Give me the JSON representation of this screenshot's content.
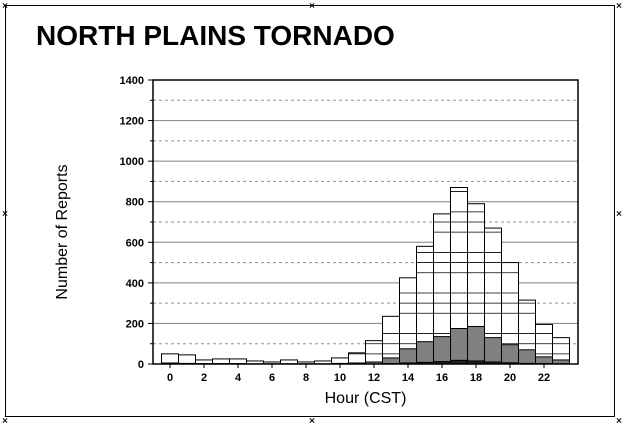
{
  "chart_data": {
    "type": "bar",
    "title": "NORTH PLAINS TORNADO",
    "xlabel": "Hour (CST)",
    "ylabel": "Number of Reports",
    "ylim": [
      0,
      1400
    ],
    "xlim": [
      -1,
      24
    ],
    "yticks": [
      "0",
      "200",
      "400",
      "600",
      "800",
      "1000",
      "1200",
      "1400"
    ],
    "xticks": [
      "0",
      "2",
      "4",
      "6",
      "8",
      "10",
      "12",
      "14",
      "16",
      "18",
      "20",
      "22"
    ],
    "hours": [
      0,
      1,
      2,
      3,
      4,
      5,
      6,
      7,
      8,
      9,
      10,
      11,
      12,
      13,
      14,
      15,
      16,
      17,
      18,
      19,
      20,
      21,
      22,
      23
    ],
    "grid": true,
    "series": [
      {
        "values": [
          50,
          45,
          20,
          25,
          25,
          15,
          10,
          20,
          10,
          15,
          30,
          55,
          115,
          235,
          425,
          580,
          740,
          870,
          790,
          670,
          500,
          315,
          195,
          130
        ],
        "fill": "#ffffff"
      },
      {
        "values": [
          5,
          3,
          2,
          2,
          2,
          1,
          1,
          1,
          1,
          1,
          3,
          5,
          10,
          30,
          75,
          110,
          135,
          175,
          185,
          130,
          95,
          70,
          35,
          20
        ],
        "fill": "#808080"
      },
      {
        "values": [
          0,
          0,
          0,
          0,
          0,
          0,
          0,
          0,
          0,
          0,
          0,
          0,
          0,
          2,
          5,
          8,
          12,
          18,
          15,
          10,
          6,
          3,
          2,
          1
        ],
        "fill": "#202020"
      }
    ]
  }
}
